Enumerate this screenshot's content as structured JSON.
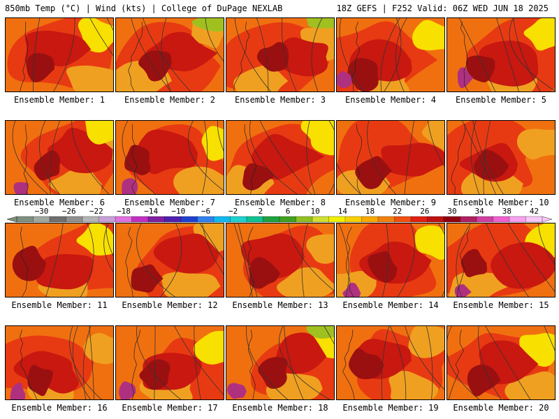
{
  "header": {
    "left": "850mb Temp (°C) | Wind (kts) | College of DuPage NEXLAB",
    "right": "18Z GEFS | F252 Valid: 06Z WED JUN 18 2025"
  },
  "members": [
    {
      "label": "Ensemble Member: 1"
    },
    {
      "label": "Ensemble Member: 2"
    },
    {
      "label": "Ensemble Member: 3"
    },
    {
      "label": "Ensemble Member: 4"
    },
    {
      "label": "Ensemble Member: 5"
    },
    {
      "label": "Ensemble Member: 6"
    },
    {
      "label": "Ensemble Member: 7"
    },
    {
      "label": "Ensemble Member: 8"
    },
    {
      "label": "Ensemble Member: 9"
    },
    {
      "label": "Ensemble Member: 10"
    },
    {
      "label": "Ensemble Member: 11"
    },
    {
      "label": "Ensemble Member: 12"
    },
    {
      "label": "Ensemble Member: 13"
    },
    {
      "label": "Ensemble Member: 14"
    },
    {
      "label": "Ensemble Member: 15"
    },
    {
      "label": "Ensemble Member: 16"
    },
    {
      "label": "Ensemble Member: 17"
    },
    {
      "label": "Ensemble Member: 18"
    },
    {
      "label": "Ensemble Member: 19"
    },
    {
      "label": "Ensemble Member: 20"
    }
  ],
  "colorbar": {
    "tick_labels": [
      "−30",
      "−26",
      "−22",
      "−18",
      "−14",
      "−10",
      "−6",
      "−2",
      "2",
      "6",
      "10",
      "14",
      "18",
      "22",
      "26",
      "30",
      "34",
      "38",
      "42"
    ],
    "colors": [
      "#7f8f7f",
      "#a0a8a0",
      "#6f6f6f",
      "#909090",
      "#b4b4b4",
      "#c8a0d8",
      "#e070e0",
      "#c030c0",
      "#8020a0",
      "#5020b0",
      "#2040d0",
      "#3080f0",
      "#10b8f0",
      "#20d0d0",
      "#10c090",
      "#20a040",
      "#40a020",
      "#90c020",
      "#d0e030",
      "#f0f000",
      "#f8d000",
      "#f8a800",
      "#f08010",
      "#f05010",
      "#e02010",
      "#c01010",
      "#900010",
      "#b02060",
      "#d040a0",
      "#f060d0",
      "#f8a0f0",
      "#f8c8f8"
    ]
  },
  "palette": {
    "yellow": "#f8e000",
    "orange": "#f0a020",
    "dark_orange": "#f07010",
    "red": "#e83a12",
    "dark_red": "#c81810",
    "maroon": "#9a1010",
    "magenta": "#b03080",
    "green": "#a0c020",
    "contour": "#333333"
  }
}
